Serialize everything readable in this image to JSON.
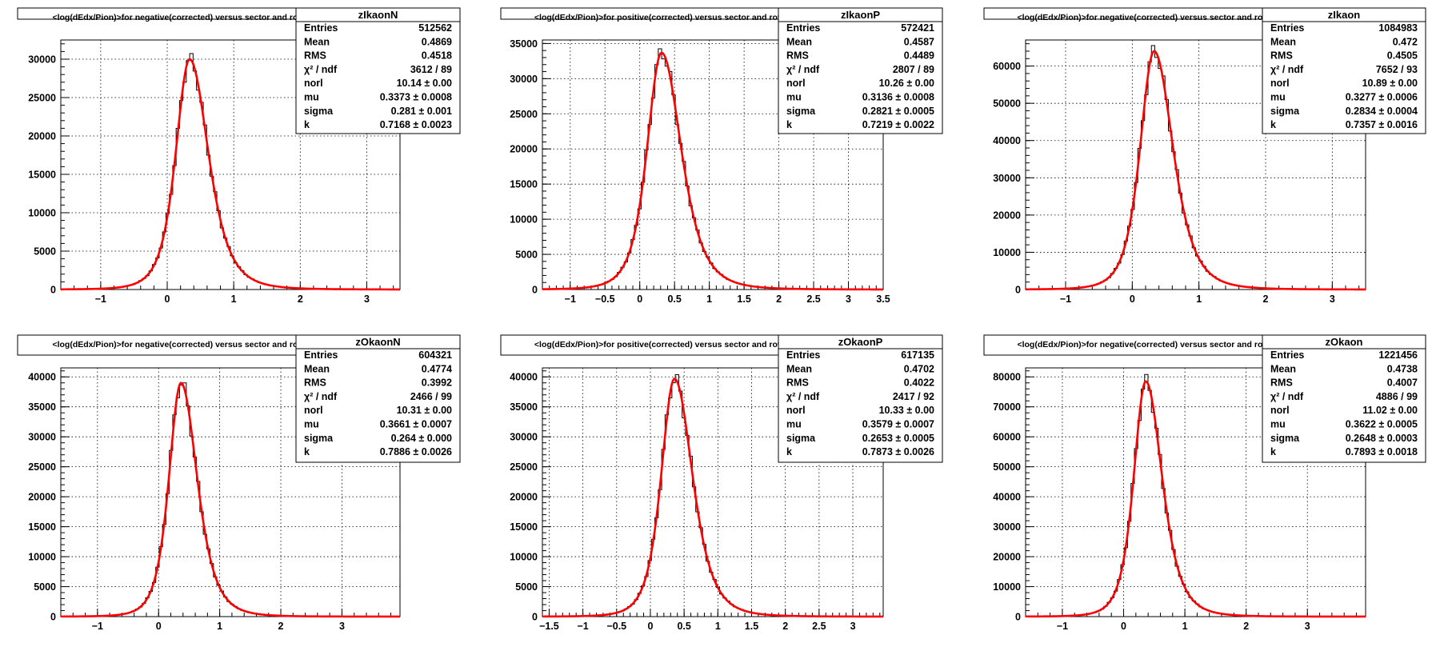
{
  "colors": {
    "fit": "#ff0000",
    "histogram": "#000000",
    "background": "#ffffff"
  },
  "chart_data": [
    {
      "type": "histogram",
      "panel": "top-left",
      "name": "zIkaonN",
      "title": "<log(dEdx/Pion)>for negative(corrected) versus sector and row",
      "xlim": [
        -1.6,
        3.5
      ],
      "ylim": [
        0,
        32500
      ],
      "xticks": [
        -1,
        0,
        1,
        2,
        3
      ],
      "yticks": [
        0,
        5000,
        10000,
        15000,
        20000,
        25000,
        30000
      ],
      "grid": true,
      "stats": [
        {
          "label": "Entries",
          "value": "512562"
        },
        {
          "label": "Mean",
          "value": "0.4869"
        },
        {
          "label": "RMS",
          "value": "0.4518"
        },
        {
          "label": "χ² / ndf",
          "value": "3612 / 89"
        },
        {
          "label": "norl",
          "value": "10.14 ± 0.00"
        },
        {
          "label": "mu",
          "value": "0.3373 ± 0.0008"
        },
        {
          "label": "sigma",
          "value": "0.281 ± 0.001"
        },
        {
          "label": "k",
          "value": "0.7168 ± 0.0023"
        }
      ],
      "fit": {
        "amplitude": 30000,
        "mu": 0.3373,
        "sigma": 0.281,
        "k": 0.7168
      }
    },
    {
      "type": "histogram",
      "panel": "top-middle",
      "name": "zIkaonP",
      "title": "<log(dEdx/Pion)>for positive(corrected) versus sector and row",
      "xlim": [
        -1.4,
        3.5
      ],
      "ylim": [
        0,
        35500
      ],
      "xticks": [
        -1,
        -0.5,
        0,
        0.5,
        1,
        1.5,
        2,
        2.5,
        3,
        3.5
      ],
      "yticks": [
        0,
        5000,
        10000,
        15000,
        20000,
        25000,
        30000,
        35000
      ],
      "grid": true,
      "stats": [
        {
          "label": "Entries",
          "value": "572421"
        },
        {
          "label": "Mean",
          "value": "0.4587"
        },
        {
          "label": "RMS",
          "value": "0.4489"
        },
        {
          "label": "χ² / ndf",
          "value": "2807 / 89"
        },
        {
          "label": "norl",
          "value": "10.26 ± 0.00"
        },
        {
          "label": "mu",
          "value": "0.3136 ± 0.0008"
        },
        {
          "label": "sigma",
          "value": "0.2821 ± 0.0005"
        },
        {
          "label": "k",
          "value": "0.7219 ± 0.0022"
        }
      ],
      "fit": {
        "amplitude": 33700,
        "mu": 0.3136,
        "sigma": 0.2821,
        "k": 0.7219
      }
    },
    {
      "type": "histogram",
      "panel": "top-right",
      "name": "zIkaon",
      "title": "<log(dEdx/Pion)>for negative(corrected) versus sector and row",
      "xlim": [
        -1.6,
        3.5
      ],
      "ylim": [
        0,
        67000
      ],
      "xticks": [
        -1,
        0,
        1,
        2,
        3
      ],
      "yticks": [
        0,
        10000,
        20000,
        30000,
        40000,
        50000,
        60000
      ],
      "grid": true,
      "stats": [
        {
          "label": "Entries",
          "value": "1084983"
        },
        {
          "label": "Mean",
          "value": "0.472"
        },
        {
          "label": "RMS",
          "value": "0.4505"
        },
        {
          "label": "χ² / ndf",
          "value": "7652 / 93"
        },
        {
          "label": "norl",
          "value": "10.89 ± 0.00"
        },
        {
          "label": "mu",
          "value": "0.3277 ± 0.0006"
        },
        {
          "label": "sigma",
          "value": "0.2834 ± 0.0004"
        },
        {
          "label": "k",
          "value": "0.7357 ± 0.0016"
        }
      ],
      "fit": {
        "amplitude": 64000,
        "mu": 0.3277,
        "sigma": 0.2834,
        "k": 0.7357
      }
    },
    {
      "type": "histogram",
      "panel": "bottom-left",
      "name": "zOkaonN",
      "title": "<log(dEdx/Pion)>for negative(corrected) versus sector and row",
      "xlim": [
        -1.6,
        3.95
      ],
      "ylim": [
        0,
        41500
      ],
      "xticks": [
        -1,
        0,
        1,
        2,
        3
      ],
      "yticks": [
        0,
        5000,
        10000,
        15000,
        20000,
        25000,
        30000,
        35000,
        40000
      ],
      "grid": true,
      "stats": [
        {
          "label": "Entries",
          "value": "604321"
        },
        {
          "label": "Mean",
          "value": "0.4774"
        },
        {
          "label": "RMS",
          "value": "0.3992"
        },
        {
          "label": "χ² / ndf",
          "value": "2466 / 99"
        },
        {
          "label": "norl",
          "value": "10.31 ± 0.00"
        },
        {
          "label": "mu",
          "value": "0.3661 ± 0.0007"
        },
        {
          "label": "sigma",
          "value": "0.264 ± 0.000"
        },
        {
          "label": "k",
          "value": "0.7886 ± 0.0026"
        }
      ],
      "fit": {
        "amplitude": 39000,
        "mu": 0.3661,
        "sigma": 0.264,
        "k": 0.7886
      }
    },
    {
      "type": "histogram",
      "panel": "bottom-middle",
      "name": "zOkaonP",
      "title": "<log(dEdx/Pion)>for positive(corrected) versus sector and row",
      "xlim": [
        -1.6,
        3.45
      ],
      "ylim": [
        0,
        41500
      ],
      "xticks": [
        -1.5,
        -1,
        -0.5,
        0,
        0.5,
        1,
        1.5,
        2,
        2.5,
        3
      ],
      "yticks": [
        0,
        5000,
        10000,
        15000,
        20000,
        25000,
        30000,
        35000,
        40000
      ],
      "grid": true,
      "stats": [
        {
          "label": "Entries",
          "value": "617135"
        },
        {
          "label": "Mean",
          "value": "0.4702"
        },
        {
          "label": "RMS",
          "value": "0.4022"
        },
        {
          "label": "χ² / ndf",
          "value": "2417 / 92"
        },
        {
          "label": "norl",
          "value": "10.33 ± 0.00"
        },
        {
          "label": "mu",
          "value": "0.3579 ± 0.0007"
        },
        {
          "label": "sigma",
          "value": "0.2653 ± 0.0005"
        },
        {
          "label": "k",
          "value": "0.7873 ± 0.0026"
        }
      ],
      "fit": {
        "amplitude": 39700,
        "mu": 0.3579,
        "sigma": 0.2653,
        "k": 0.7873
      }
    },
    {
      "type": "histogram",
      "panel": "bottom-right",
      "name": "zOkaon",
      "title": "<log(dEdx/Pion)>for negative(corrected) versus sector and row",
      "xlim": [
        -1.6,
        3.95
      ],
      "ylim": [
        0,
        83000
      ],
      "xticks": [
        -1,
        0,
        1,
        2,
        3
      ],
      "yticks": [
        0,
        10000,
        20000,
        30000,
        40000,
        50000,
        60000,
        70000,
        80000
      ],
      "grid": true,
      "stats": [
        {
          "label": "Entries",
          "value": "1221456"
        },
        {
          "label": "Mean",
          "value": "0.4738"
        },
        {
          "label": "RMS",
          "value": "0.4007"
        },
        {
          "label": "χ² / ndf",
          "value": "4886 / 99"
        },
        {
          "label": "norl",
          "value": "11.02 ± 0.00"
        },
        {
          "label": "mu",
          "value": "0.3622 ± 0.0005"
        },
        {
          "label": "sigma",
          "value": "0.2648 ± 0.0003"
        },
        {
          "label": "k",
          "value": "0.7893 ± 0.0018"
        }
      ],
      "fit": {
        "amplitude": 78500,
        "mu": 0.3622,
        "sigma": 0.2648,
        "k": 0.7893
      }
    }
  ]
}
